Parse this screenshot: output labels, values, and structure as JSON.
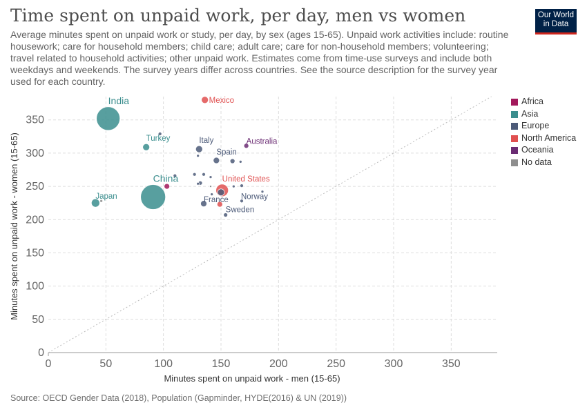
{
  "header": {
    "title": "Time spent on unpaid work, per day, men vs women",
    "subtitle": "Average minutes spent on unpaid work or study, per day, by sex (ages 15-65). Unpaid work activities include: routine housework; care for household members; child care; adult care; care for non-household members; volunteering; travel related to household activities; other unpaid work. Estimates come from time-use surveys and include both weekdays and weekends. The survey years differ across countries. See the source description for the survey year used for each country."
  },
  "logo": {
    "line1": "Our World",
    "line2": "in Data"
  },
  "footer": {
    "source": "Source: OECD Gender Data (2018), Population (Gapminder, HYDE(2016) & UN (2019))"
  },
  "legend": [
    {
      "label": "Africa",
      "color": "#a2185b"
    },
    {
      "label": "Asia",
      "color": "#3b8e8e"
    },
    {
      "label": "Europe",
      "color": "#4c5a78"
    },
    {
      "label": "North America",
      "color": "#e05050"
    },
    {
      "label": "Oceania",
      "color": "#6b2c73"
    },
    {
      "label": "No data",
      "color": "#8e8e8e"
    }
  ],
  "chart_data": {
    "type": "scatter",
    "xlabel": "Minutes spent on unpaid work - men (15-65)",
    "ylabel": "Minutes spent on unpaid work - women (15-65)",
    "xlim": [
      0,
      390
    ],
    "ylim": [
      0,
      385
    ],
    "x_ticks": [
      0,
      50,
      100,
      150,
      200,
      250,
      300,
      350
    ],
    "y_ticks": [
      0,
      50,
      100,
      150,
      200,
      250,
      300,
      350
    ],
    "grid": true,
    "reference_line": "y = x",
    "legend_position": "right",
    "points": [
      {
        "label": "India",
        "region": "Asia",
        "x": 52,
        "y": 352,
        "size": 17
      },
      {
        "label": "China",
        "region": "Asia",
        "x": 91,
        "y": 234,
        "size": 18
      },
      {
        "label": "Japan",
        "region": "Asia",
        "x": 41,
        "y": 225,
        "size": 6
      },
      {
        "label": "Turkey",
        "region": "Asia",
        "x": 85,
        "y": 309,
        "size": 5
      },
      {
        "label": "Mexico",
        "region": "North America",
        "x": 136,
        "y": 380,
        "size": 5
      },
      {
        "label": "United States",
        "region": "North America",
        "x": 151,
        "y": 244,
        "size": 9
      },
      {
        "label": "Australia",
        "region": "Oceania",
        "x": 172,
        "y": 311,
        "size": 3.5
      },
      {
        "label": "Italy",
        "region": "Europe",
        "x": 131,
        "y": 306,
        "size": 5
      },
      {
        "label": "Spain",
        "region": "Europe",
        "x": 146,
        "y": 289,
        "size": 4.5
      },
      {
        "label": "France",
        "region": "Europe",
        "x": 135,
        "y": 224,
        "size": 4.5
      },
      {
        "label": "Norway",
        "region": "Europe",
        "x": 168,
        "y": 228,
        "size": 2.5
      },
      {
        "label": "Sweden",
        "region": "Europe",
        "x": 154,
        "y": 207,
        "size": 3
      },
      {
        "label": "",
        "region": "Africa",
        "x": 103,
        "y": 250,
        "size": 4
      },
      {
        "label": "",
        "region": "Europe",
        "x": 97,
        "y": 329,
        "size": 2.5
      },
      {
        "label": "",
        "region": "Europe",
        "x": 130,
        "y": 296,
        "size": 2
      },
      {
        "label": "",
        "region": "Europe",
        "x": 160,
        "y": 288,
        "size": 3.5
      },
      {
        "label": "",
        "region": "Europe",
        "x": 167,
        "y": 287,
        "size": 2
      },
      {
        "label": "",
        "region": "Europe",
        "x": 110,
        "y": 266,
        "size": 2.5
      },
      {
        "label": "",
        "region": "Europe",
        "x": 127,
        "y": 268,
        "size": 2.5
      },
      {
        "label": "",
        "region": "Europe",
        "x": 135,
        "y": 268,
        "size": 2.5
      },
      {
        "label": "",
        "region": "Europe",
        "x": 141,
        "y": 264,
        "size": 2
      },
      {
        "label": "",
        "region": "Europe",
        "x": 132,
        "y": 255,
        "size": 3
      },
      {
        "label": "",
        "region": "Europe",
        "x": 130,
        "y": 254,
        "size": 2
      },
      {
        "label": "",
        "region": "Europe",
        "x": 141,
        "y": 250,
        "size": 2
      },
      {
        "label": "",
        "region": "Europe",
        "x": 161,
        "y": 250,
        "size": 2
      },
      {
        "label": "",
        "region": "Europe",
        "x": 168,
        "y": 251,
        "size": 2.5
      },
      {
        "label": "",
        "region": "Europe",
        "x": 150,
        "y": 241,
        "size": 5
      },
      {
        "label": "",
        "region": "Europe",
        "x": 142,
        "y": 238,
        "size": 2
      },
      {
        "label": "",
        "region": "Europe",
        "x": 186,
        "y": 242,
        "size": 2
      },
      {
        "label": "",
        "region": "North America",
        "x": 149,
        "y": 223,
        "size": 4
      },
      {
        "label": "",
        "region": "No data",
        "x": 46,
        "y": 228,
        "size": 2
      },
      {
        "label": "",
        "region": "No data",
        "x": 141,
        "y": 250,
        "size": 1.5
      }
    ]
  }
}
